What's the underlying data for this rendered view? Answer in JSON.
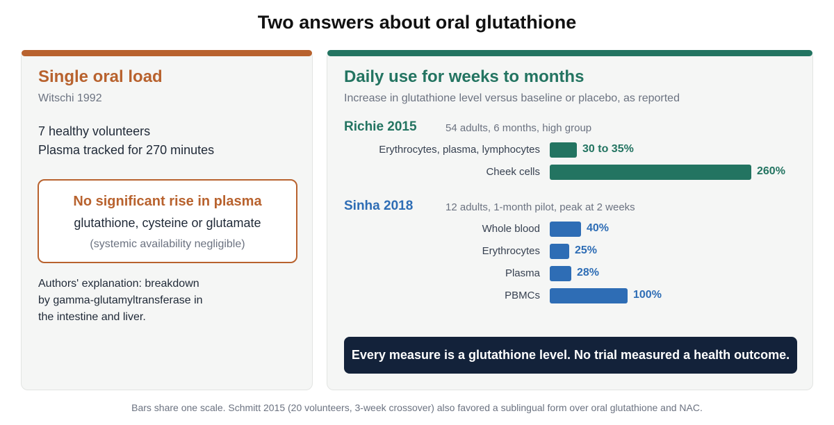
{
  "title": "Two answers about oral glutathione",
  "colors": {
    "orange": "#b8622e",
    "green": "#237461",
    "blue": "#2e6db5",
    "navy": "#13223a"
  },
  "left_panel": {
    "heading": "Single oral load",
    "source": "Witschi 1992",
    "facts": [
      "7 healthy volunteers",
      "Plasma tracked for 270 minutes"
    ],
    "callout": {
      "headline": "No significant rise in plasma",
      "line2": "glutathione, cysteine or glutamate",
      "line3": "(systemic availability negligible)"
    },
    "explanation_lines": [
      "Authors' explanation: breakdown",
      "by gamma-glutamyltransferase in",
      "the intestine and liver."
    ]
  },
  "right_panel": {
    "heading": "Daily use for weeks to months",
    "subtitle": "Increase in glutathione level versus baseline or placebo, as reported",
    "banner": "Every measure is a glutathione level. No trial measured a health outcome."
  },
  "chart_data": {
    "type": "bar",
    "orientation": "horizontal",
    "scale_max": 260,
    "groups": [
      {
        "name": "Richie 2015",
        "note": "54 adults, 6 months, high group",
        "color": "#237461",
        "rows": [
          {
            "label": "Erythrocytes, plasma, lymphocytes",
            "value": 35,
            "value_label": "30 to 35%"
          },
          {
            "label": "Cheek cells",
            "value": 260,
            "value_label": "260%"
          }
        ]
      },
      {
        "name": "Sinha 2018",
        "note": "12 adults, 1-month pilot, peak at 2 weeks",
        "color": "#2e6db5",
        "rows": [
          {
            "label": "Whole blood",
            "value": 40,
            "value_label": "40%"
          },
          {
            "label": "Erythrocytes",
            "value": 25,
            "value_label": "25%"
          },
          {
            "label": "Plasma",
            "value": 28,
            "value_label": "28%"
          },
          {
            "label": "PBMCs",
            "value": 100,
            "value_label": "100%"
          }
        ]
      }
    ]
  },
  "footnote": "Bars share one scale. Schmitt 2015 (20 volunteers, 3-week crossover) also favored a sublingual form over oral glutathione and NAC."
}
